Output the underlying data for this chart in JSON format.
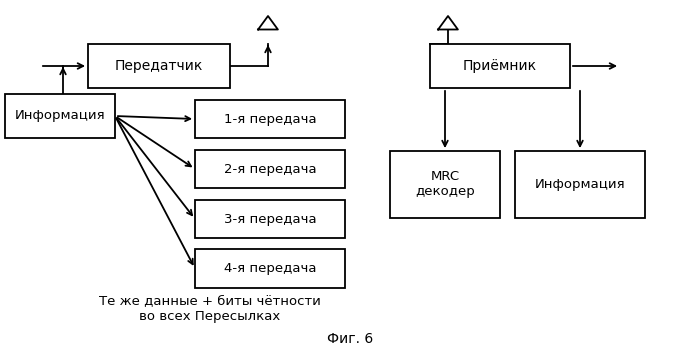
{
  "bg_color": "#ffffff",
  "text_color": "#000000",
  "box_edge_color": "#000000",
  "fig_caption": "Фиг. 6",
  "bottom_text_line1": "Те же данные + биты чётности",
  "bottom_text_line2": "во всех Пересылках"
}
